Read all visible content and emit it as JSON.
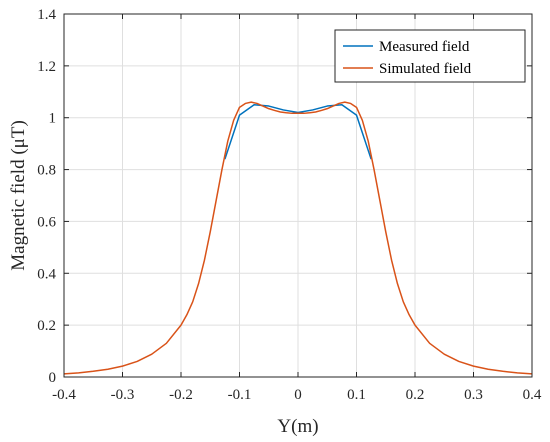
{
  "chart_data": {
    "type": "line",
    "title": "",
    "xlabel": "Y(m)",
    "ylabel": "Magnetic field (μT)",
    "xlim": [
      -0.4,
      0.4
    ],
    "ylim": [
      0,
      1.4
    ],
    "x_ticks": [
      -0.4,
      -0.3,
      -0.2,
      -0.1,
      0,
      0.1,
      0.2,
      0.3,
      0.4
    ],
    "x_tick_labels": [
      "-0.4",
      "-0.3",
      "-0.2",
      "-0.1",
      "0",
      "0.1",
      "0.2",
      "0.3",
      "0.4"
    ],
    "y_ticks": [
      0,
      0.2,
      0.4,
      0.6,
      0.8,
      1,
      1.2,
      1.4
    ],
    "y_tick_labels": [
      "0",
      "0.2",
      "0.4",
      "0.6",
      "0.8",
      "1",
      "1.2",
      "1.4"
    ],
    "grid": true,
    "legend_position": "top-right",
    "series": [
      {
        "name": "Measured field",
        "color": "#0072bd",
        "x": [
          -0.125,
          -0.1,
          -0.075,
          -0.05,
          -0.025,
          0,
          0.025,
          0.05,
          0.075,
          0.1,
          0.125
        ],
        "y": [
          0.84,
          1.01,
          1.05,
          1.045,
          1.03,
          1.02,
          1.03,
          1.045,
          1.05,
          1.01,
          0.84
        ]
      },
      {
        "name": "Simulated field",
        "color": "#d95319",
        "x": [
          -0.4,
          -0.375,
          -0.35,
          -0.325,
          -0.3,
          -0.275,
          -0.25,
          -0.225,
          -0.2,
          -0.19,
          -0.18,
          -0.17,
          -0.16,
          -0.15,
          -0.14,
          -0.13,
          -0.12,
          -0.11,
          -0.1,
          -0.09,
          -0.08,
          -0.07,
          -0.06,
          -0.05,
          -0.04,
          -0.03,
          -0.02,
          -0.01,
          0,
          0.01,
          0.02,
          0.03,
          0.04,
          0.05,
          0.06,
          0.07,
          0.08,
          0.09,
          0.1,
          0.11,
          0.12,
          0.13,
          0.14,
          0.15,
          0.16,
          0.17,
          0.18,
          0.19,
          0.2,
          0.225,
          0.25,
          0.275,
          0.3,
          0.325,
          0.35,
          0.375,
          0.4
        ],
        "y": [
          0.012,
          0.016,
          0.022,
          0.03,
          0.042,
          0.06,
          0.088,
          0.13,
          0.2,
          0.24,
          0.29,
          0.36,
          0.45,
          0.56,
          0.68,
          0.8,
          0.91,
          0.99,
          1.04,
          1.055,
          1.06,
          1.055,
          1.045,
          1.035,
          1.028,
          1.022,
          1.019,
          1.017,
          1.017,
          1.017,
          1.019,
          1.022,
          1.028,
          1.035,
          1.045,
          1.055,
          1.06,
          1.055,
          1.04,
          0.99,
          0.91,
          0.8,
          0.68,
          0.56,
          0.45,
          0.36,
          0.29,
          0.24,
          0.2,
          0.13,
          0.088,
          0.06,
          0.042,
          0.03,
          0.022,
          0.016,
          0.012
        ]
      }
    ]
  }
}
